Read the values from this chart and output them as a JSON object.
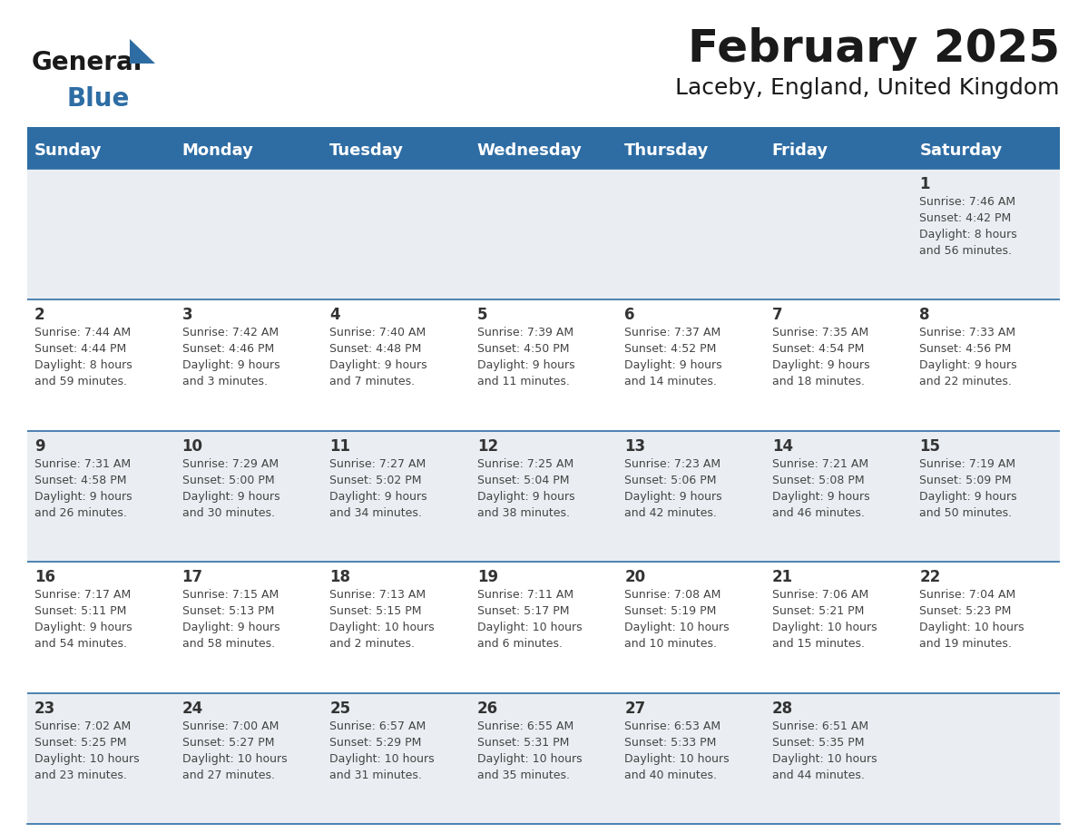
{
  "title": "February 2025",
  "subtitle": "Laceby, England, United Kingdom",
  "header_bg": "#2E6DA4",
  "header_text_color": "#FFFFFF",
  "cell_bg_odd": "#EAEEF2",
  "cell_bg_even": "#FFFFFF",
  "border_color": "#2E6DA4",
  "text_color": "#333333",
  "day_number_color": "#333333",
  "info_text_color": "#444444",
  "day_headers": [
    "Sunday",
    "Monday",
    "Tuesday",
    "Wednesday",
    "Thursday",
    "Friday",
    "Saturday"
  ],
  "weeks": [
    [
      {
        "day": null,
        "sunrise": null,
        "sunset": null,
        "daylight": null
      },
      {
        "day": null,
        "sunrise": null,
        "sunset": null,
        "daylight": null
      },
      {
        "day": null,
        "sunrise": null,
        "sunset": null,
        "daylight": null
      },
      {
        "day": null,
        "sunrise": null,
        "sunset": null,
        "daylight": null
      },
      {
        "day": null,
        "sunrise": null,
        "sunset": null,
        "daylight": null
      },
      {
        "day": null,
        "sunrise": null,
        "sunset": null,
        "daylight": null
      },
      {
        "day": 1,
        "sunrise": "7:46 AM",
        "sunset": "4:42 PM",
        "daylight": "8 hours\nand 56 minutes."
      }
    ],
    [
      {
        "day": 2,
        "sunrise": "7:44 AM",
        "sunset": "4:44 PM",
        "daylight": "8 hours\nand 59 minutes."
      },
      {
        "day": 3,
        "sunrise": "7:42 AM",
        "sunset": "4:46 PM",
        "daylight": "9 hours\nand 3 minutes."
      },
      {
        "day": 4,
        "sunrise": "7:40 AM",
        "sunset": "4:48 PM",
        "daylight": "9 hours\nand 7 minutes."
      },
      {
        "day": 5,
        "sunrise": "7:39 AM",
        "sunset": "4:50 PM",
        "daylight": "9 hours\nand 11 minutes."
      },
      {
        "day": 6,
        "sunrise": "7:37 AM",
        "sunset": "4:52 PM",
        "daylight": "9 hours\nand 14 minutes."
      },
      {
        "day": 7,
        "sunrise": "7:35 AM",
        "sunset": "4:54 PM",
        "daylight": "9 hours\nand 18 minutes."
      },
      {
        "day": 8,
        "sunrise": "7:33 AM",
        "sunset": "4:56 PM",
        "daylight": "9 hours\nand 22 minutes."
      }
    ],
    [
      {
        "day": 9,
        "sunrise": "7:31 AM",
        "sunset": "4:58 PM",
        "daylight": "9 hours\nand 26 minutes."
      },
      {
        "day": 10,
        "sunrise": "7:29 AM",
        "sunset": "5:00 PM",
        "daylight": "9 hours\nand 30 minutes."
      },
      {
        "day": 11,
        "sunrise": "7:27 AM",
        "sunset": "5:02 PM",
        "daylight": "9 hours\nand 34 minutes."
      },
      {
        "day": 12,
        "sunrise": "7:25 AM",
        "sunset": "5:04 PM",
        "daylight": "9 hours\nand 38 minutes."
      },
      {
        "day": 13,
        "sunrise": "7:23 AM",
        "sunset": "5:06 PM",
        "daylight": "9 hours\nand 42 minutes."
      },
      {
        "day": 14,
        "sunrise": "7:21 AM",
        "sunset": "5:08 PM",
        "daylight": "9 hours\nand 46 minutes."
      },
      {
        "day": 15,
        "sunrise": "7:19 AM",
        "sunset": "5:09 PM",
        "daylight": "9 hours\nand 50 minutes."
      }
    ],
    [
      {
        "day": 16,
        "sunrise": "7:17 AM",
        "sunset": "5:11 PM",
        "daylight": "9 hours\nand 54 minutes."
      },
      {
        "day": 17,
        "sunrise": "7:15 AM",
        "sunset": "5:13 PM",
        "daylight": "9 hours\nand 58 minutes."
      },
      {
        "day": 18,
        "sunrise": "7:13 AM",
        "sunset": "5:15 PM",
        "daylight": "10 hours\nand 2 minutes."
      },
      {
        "day": 19,
        "sunrise": "7:11 AM",
        "sunset": "5:17 PM",
        "daylight": "10 hours\nand 6 minutes."
      },
      {
        "day": 20,
        "sunrise": "7:08 AM",
        "sunset": "5:19 PM",
        "daylight": "10 hours\nand 10 minutes."
      },
      {
        "day": 21,
        "sunrise": "7:06 AM",
        "sunset": "5:21 PM",
        "daylight": "10 hours\nand 15 minutes."
      },
      {
        "day": 22,
        "sunrise": "7:04 AM",
        "sunset": "5:23 PM",
        "daylight": "10 hours\nand 19 minutes."
      }
    ],
    [
      {
        "day": 23,
        "sunrise": "7:02 AM",
        "sunset": "5:25 PM",
        "daylight": "10 hours\nand 23 minutes."
      },
      {
        "day": 24,
        "sunrise": "7:00 AM",
        "sunset": "5:27 PM",
        "daylight": "10 hours\nand 27 minutes."
      },
      {
        "day": 25,
        "sunrise": "6:57 AM",
        "sunset": "5:29 PM",
        "daylight": "10 hours\nand 31 minutes."
      },
      {
        "day": 26,
        "sunrise": "6:55 AM",
        "sunset": "5:31 PM",
        "daylight": "10 hours\nand 35 minutes."
      },
      {
        "day": 27,
        "sunrise": "6:53 AM",
        "sunset": "5:33 PM",
        "daylight": "10 hours\nand 40 minutes."
      },
      {
        "day": 28,
        "sunrise": "6:51 AM",
        "sunset": "5:35 PM",
        "daylight": "10 hours\nand 44 minutes."
      },
      {
        "day": null,
        "sunrise": null,
        "sunset": null,
        "daylight": null
      }
    ]
  ],
  "logo_text_general": "General",
  "logo_text_blue": "Blue",
  "logo_color_general": "#1A1A1A",
  "logo_color_blue": "#2E6DA4",
  "logo_triangle_color": "#2E6DA4",
  "title_fontsize": 36,
  "subtitle_fontsize": 18,
  "header_fontsize": 13,
  "day_num_fontsize": 12,
  "cell_text_fontsize": 9
}
